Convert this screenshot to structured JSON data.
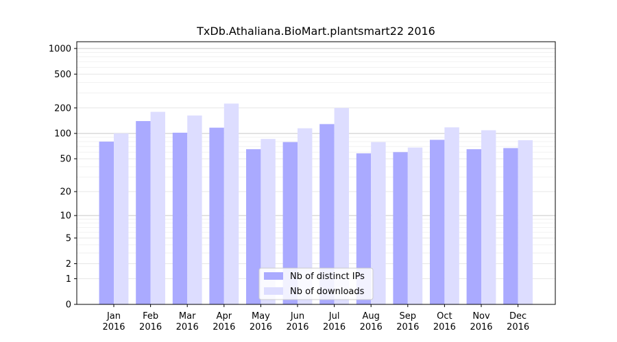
{
  "chart_data": {
    "type": "bar",
    "title": "TxDb.Athaliana.BioMart.plantsmart22 2016",
    "xlabel": "",
    "ylabel": "",
    "y_scale": "log(1+y)",
    "ylim": [
      0,
      1200
    ],
    "y_ticks": [
      0,
      1,
      2,
      5,
      10,
      20,
      50,
      100,
      200,
      500,
      1000
    ],
    "grid": true,
    "legend_position": "bottom-center",
    "categories": [
      [
        "Jan",
        "2016"
      ],
      [
        "Feb",
        "2016"
      ],
      [
        "Mar",
        "2016"
      ],
      [
        "Apr",
        "2016"
      ],
      [
        "May",
        "2016"
      ],
      [
        "Jun",
        "2016"
      ],
      [
        "Jul",
        "2016"
      ],
      [
        "Aug",
        "2016"
      ],
      [
        "Sep",
        "2016"
      ],
      [
        "Oct",
        "2016"
      ],
      [
        "Nov",
        "2016"
      ],
      [
        "Dec",
        "2016"
      ]
    ],
    "series": [
      {
        "name": "Nb of distinct IPs",
        "color": "#aaaaff",
        "values": [
          80,
          140,
          102,
          117,
          65,
          79,
          129,
          58,
          60,
          84,
          65,
          67
        ]
      },
      {
        "name": "Nb of downloads",
        "color": "#ddddff",
        "values": [
          100,
          180,
          163,
          225,
          86,
          115,
          200,
          79,
          68,
          118,
          109,
          83
        ]
      }
    ]
  }
}
